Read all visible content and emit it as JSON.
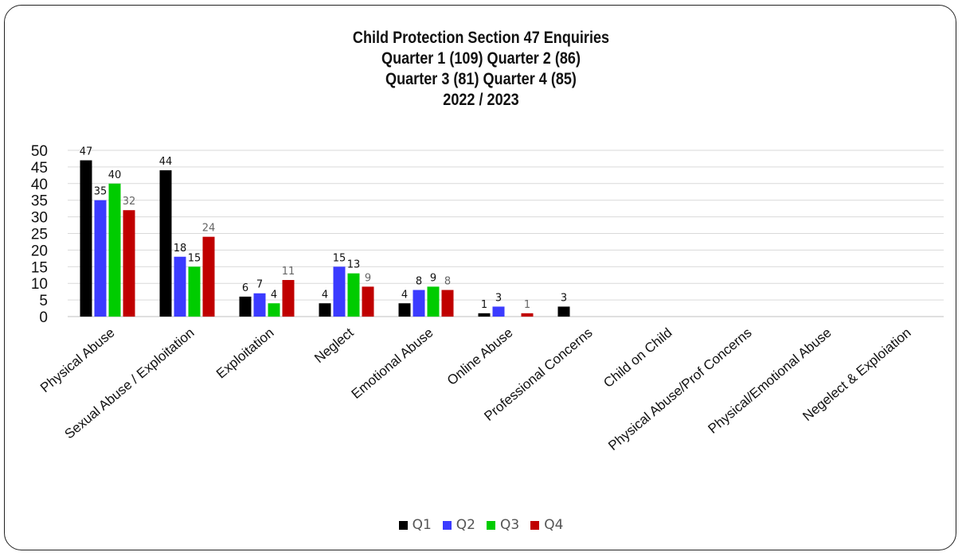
{
  "chart_data": {
    "type": "bar",
    "title_lines": [
      "Child Protection Section 47 Enquiries",
      "Quarter 1 (109)  Quarter 2 (86)",
      "Quarter 3 (81) Quarter 4 (85)",
      "2022 / 2023"
    ],
    "categories": [
      "Physical Abuse",
      "Sexual Abuse / Exploitation",
      "Exploitation",
      "Neglect",
      "Emotional Abuse",
      "Online Abuse",
      "Professional Concerns",
      "Child on Child",
      "Physical Abuse/Prof Concerns",
      "Physical/Emotional Abuse",
      "Negelect & Exploiation"
    ],
    "series": [
      {
        "name": "Q1",
        "color": "#000000",
        "values": [
          47,
          44,
          6,
          4,
          4,
          1,
          3,
          0,
          0,
          0,
          0
        ],
        "labels": [
          "47",
          "44",
          "6",
          "4",
          "4",
          "1",
          "3",
          "",
          "",
          "",
          ""
        ]
      },
      {
        "name": "Q2",
        "color": "#3b3bff",
        "values": [
          35,
          18,
          7,
          15,
          8,
          3,
          0,
          0,
          0,
          0,
          0
        ],
        "labels": [
          "35",
          "18",
          "7",
          "15",
          "8",
          "3",
          "",
          "",
          "",
          "",
          ""
        ]
      },
      {
        "name": "Q3",
        "color": "#00cc00",
        "values": [
          40,
          15,
          4,
          13,
          9,
          0,
          0,
          0,
          0,
          0,
          0
        ],
        "labels": [
          "40",
          "15",
          "4",
          "13",
          "9",
          "",
          "",
          "",
          "",
          "",
          ""
        ]
      },
      {
        "name": "Q4",
        "color": "#c00000",
        "values": [
          32,
          24,
          11,
          9,
          8,
          1,
          0,
          0,
          0,
          0,
          0
        ],
        "labels": [
          "32",
          "24",
          "11",
          "9",
          "8",
          "1",
          "",
          "",
          "",
          "",
          ""
        ]
      }
    ],
    "ylim": [
      0,
      50
    ],
    "yticks": [
      0,
      5,
      10,
      15,
      20,
      25,
      30,
      35,
      40,
      45,
      50
    ],
    "grid": true,
    "legend_position": "bottom-center"
  }
}
